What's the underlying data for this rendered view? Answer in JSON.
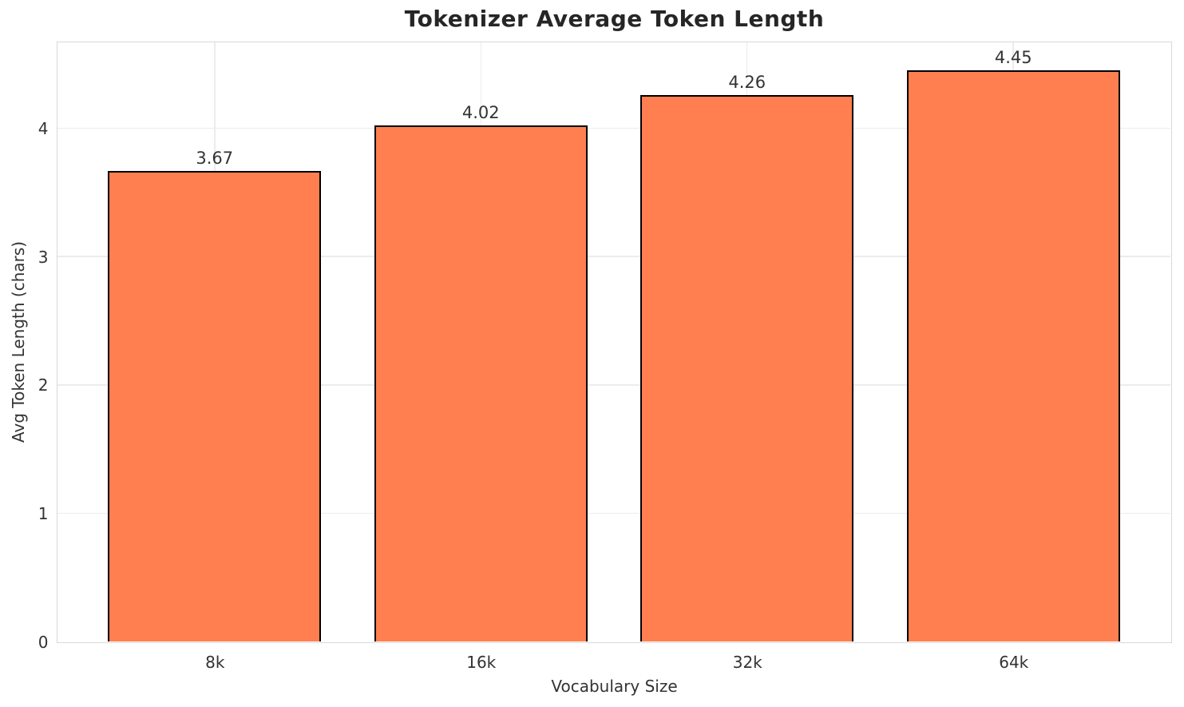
{
  "chart_data": {
    "type": "bar",
    "title": "Tokenizer Average Token Length",
    "xlabel": "Vocabulary Size",
    "ylabel": "Avg Token Length (chars)",
    "categories": [
      "8k",
      "16k",
      "32k",
      "64k"
    ],
    "values": [
      3.67,
      4.02,
      4.26,
      4.45
    ],
    "value_labels": [
      "3.67",
      "4.02",
      "4.26",
      "4.45"
    ],
    "yticks": [
      0,
      1,
      2,
      3,
      4
    ],
    "ytick_labels": [
      "0",
      "1",
      "2",
      "3",
      "4"
    ],
    "ylim": [
      0,
      4.67
    ],
    "bar_color": "#FF7F50",
    "bar_edge_color": "#000000",
    "grid": true,
    "legend": "none"
  }
}
